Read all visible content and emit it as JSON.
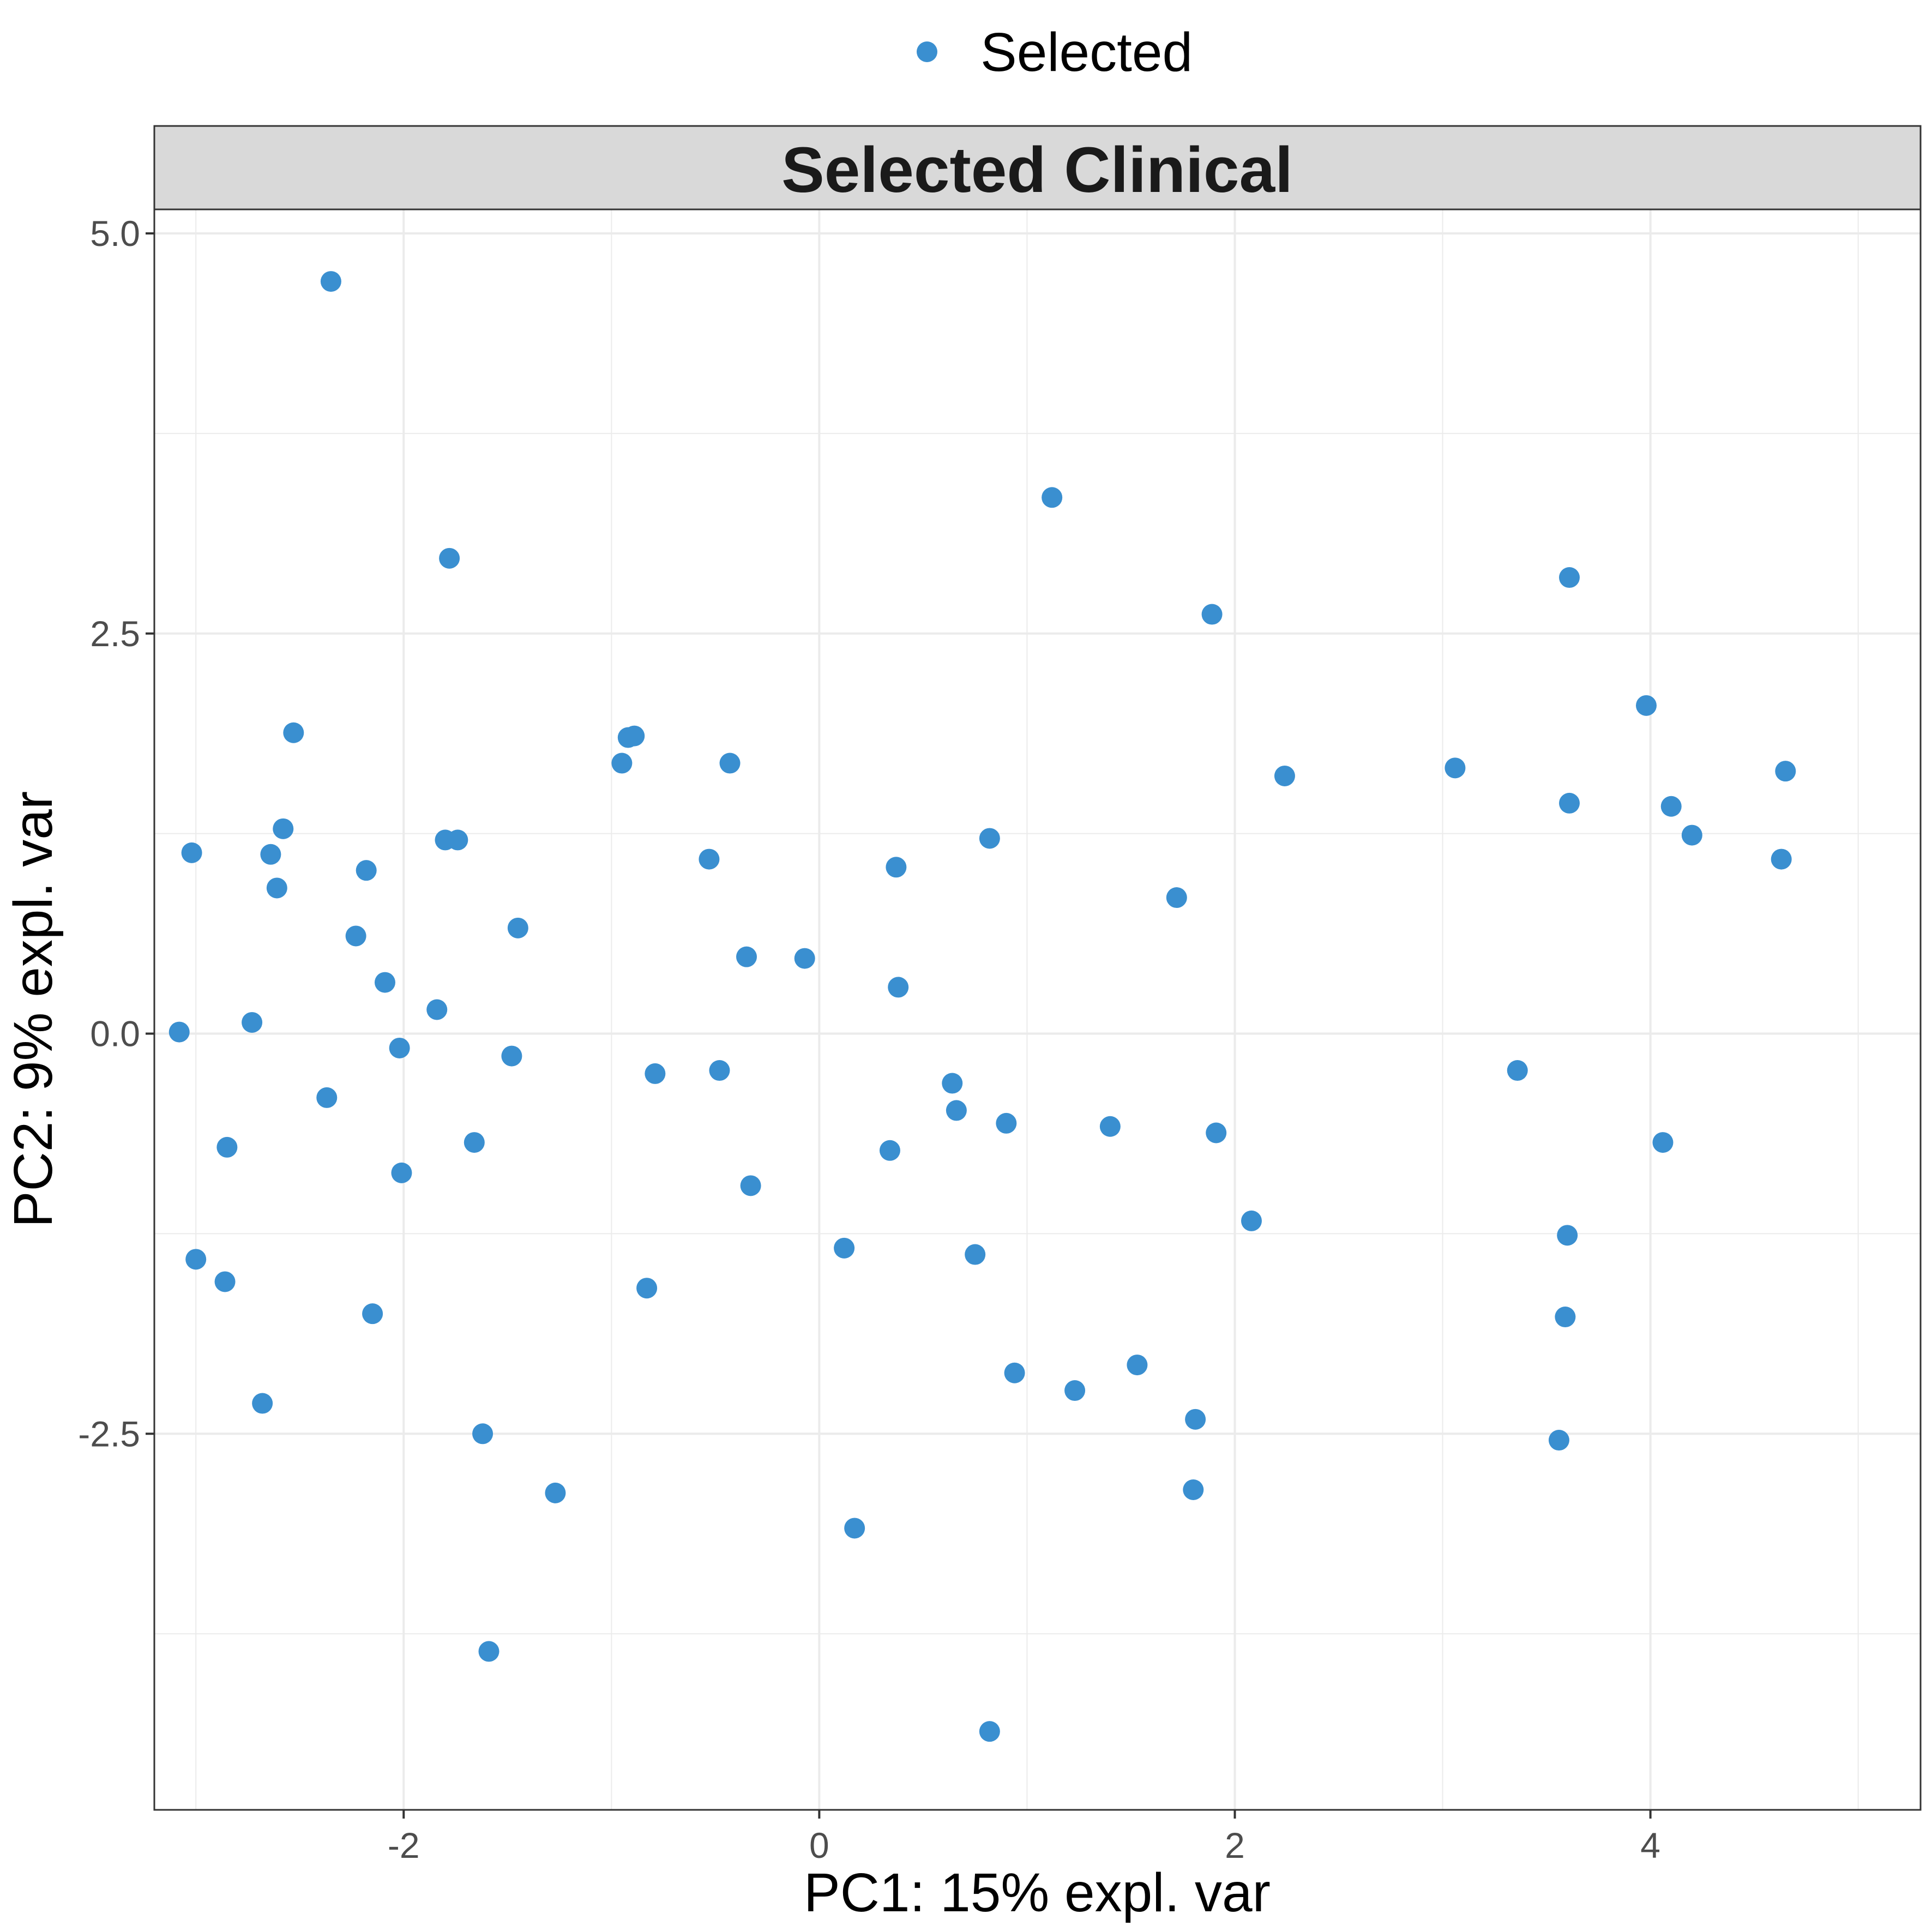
{
  "legend": {
    "label": "Selected",
    "color": "#3a8fd0"
  },
  "chart_data": {
    "type": "scatter",
    "strip_title": "Selected Clinical",
    "xlabel": "PC1: 15% expl. var",
    "ylabel": "PC2: 9% expl. var",
    "xlim": [
      -3.2,
      5.3
    ],
    "ylim": [
      -4.85,
      5.15
    ],
    "x_ticks": [
      -2,
      0,
      2,
      4
    ],
    "x_tick_labels": [
      "-2",
      "0",
      "2",
      "4"
    ],
    "y_ticks": [
      -2.5,
      0.0,
      2.5,
      5.0
    ],
    "y_tick_labels": [
      "-2.5",
      "0.0",
      "2.5",
      "5.0"
    ],
    "grid": true,
    "legend_position": "top",
    "point_color": "#3a8fd0",
    "series": [
      {
        "name": "Selected",
        "points": [
          {
            "x": -2.35,
            "y": 4.7
          },
          {
            "x": -1.78,
            "y": 2.97
          },
          {
            "x": 1.12,
            "y": 3.35
          },
          {
            "x": 1.89,
            "y": 2.62
          },
          {
            "x": 3.61,
            "y": 2.85
          },
          {
            "x": 3.98,
            "y": 2.05
          },
          {
            "x": -2.53,
            "y": 1.88
          },
          {
            "x": -0.92,
            "y": 1.85
          },
          {
            "x": -0.89,
            "y": 1.86
          },
          {
            "x": -0.95,
            "y": 1.69
          },
          {
            "x": -0.43,
            "y": 1.69
          },
          {
            "x": 2.24,
            "y": 1.61
          },
          {
            "x": 3.06,
            "y": 1.66
          },
          {
            "x": 4.65,
            "y": 1.64
          },
          {
            "x": 3.61,
            "y": 1.44
          },
          {
            "x": 4.1,
            "y": 1.42
          },
          {
            "x": 4.2,
            "y": 1.24
          },
          {
            "x": 4.63,
            "y": 1.09
          },
          {
            "x": -2.58,
            "y": 1.28
          },
          {
            "x": -3.02,
            "y": 1.13
          },
          {
            "x": -2.64,
            "y": 1.12
          },
          {
            "x": -1.8,
            "y": 1.21
          },
          {
            "x": -1.74,
            "y": 1.21
          },
          {
            "x": 0.82,
            "y": 1.22
          },
          {
            "x": -2.18,
            "y": 1.02
          },
          {
            "x": -2.61,
            "y": 0.91
          },
          {
            "x": -0.53,
            "y": 1.09
          },
          {
            "x": 0.37,
            "y": 1.04
          },
          {
            "x": 1.72,
            "y": 0.85
          },
          {
            "x": -2.23,
            "y": 0.61
          },
          {
            "x": -1.45,
            "y": 0.66
          },
          {
            "x": -0.35,
            "y": 0.48
          },
          {
            "x": -0.07,
            "y": 0.47
          },
          {
            "x": -2.09,
            "y": 0.32
          },
          {
            "x": 0.38,
            "y": 0.29
          },
          {
            "x": -1.84,
            "y": 0.15
          },
          {
            "x": -2.73,
            "y": 0.07
          },
          {
            "x": -3.08,
            "y": 0.01
          },
          {
            "x": -2.02,
            "y": -0.09
          },
          {
            "x": -1.48,
            "y": -0.14
          },
          {
            "x": -0.79,
            "y": -0.25
          },
          {
            "x": -0.48,
            "y": -0.23
          },
          {
            "x": 0.64,
            "y": -0.31
          },
          {
            "x": -2.37,
            "y": -0.4
          },
          {
            "x": 0.66,
            "y": -0.48
          },
          {
            "x": 0.9,
            "y": -0.56
          },
          {
            "x": 1.4,
            "y": -0.58
          },
          {
            "x": 1.91,
            "y": -0.62
          },
          {
            "x": 3.36,
            "y": -0.23
          },
          {
            "x": 4.06,
            "y": -0.68
          },
          {
            "x": -2.85,
            "y": -0.71
          },
          {
            "x": -1.66,
            "y": -0.68
          },
          {
            "x": 0.34,
            "y": -0.73
          },
          {
            "x": -2.01,
            "y": -0.87
          },
          {
            "x": -0.33,
            "y": -0.95
          },
          {
            "x": 2.08,
            "y": -1.17
          },
          {
            "x": 3.6,
            "y": -1.26
          },
          {
            "x": -3.0,
            "y": -1.41
          },
          {
            "x": 0.12,
            "y": -1.34
          },
          {
            "x": 0.75,
            "y": -1.38
          },
          {
            "x": -2.86,
            "y": -1.55
          },
          {
            "x": -0.83,
            "y": -1.59
          },
          {
            "x": -2.15,
            "y": -1.75
          },
          {
            "x": 3.59,
            "y": -1.77
          },
          {
            "x": 1.53,
            "y": -2.07
          },
          {
            "x": 0.94,
            "y": -2.12
          },
          {
            "x": 1.23,
            "y": -2.23
          },
          {
            "x": -2.68,
            "y": -2.31
          },
          {
            "x": 1.81,
            "y": -2.41
          },
          {
            "x": -1.62,
            "y": -2.5
          },
          {
            "x": 3.56,
            "y": -2.54
          },
          {
            "x": -1.27,
            "y": -2.87
          },
          {
            "x": 1.8,
            "y": -2.85
          },
          {
            "x": 0.17,
            "y": -3.09
          },
          {
            "x": -1.59,
            "y": -3.86
          },
          {
            "x": 0.82,
            "y": -4.36
          }
        ]
      }
    ]
  }
}
